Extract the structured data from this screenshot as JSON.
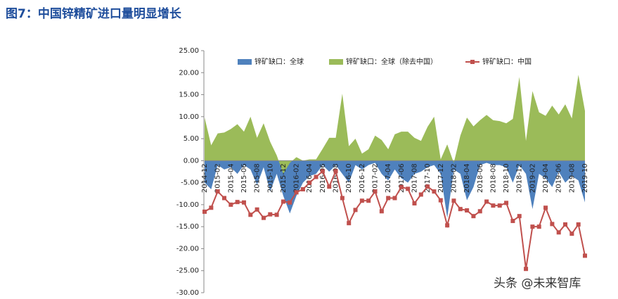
{
  "chart_data": {
    "type": "area",
    "title": "图7：中国锌精矿进口量明显增长",
    "watermark": "头条 @未来智库",
    "categories": [
      "2014-12",
      null,
      "2015-02",
      null,
      "2015-04",
      null,
      "2015-06",
      null,
      "2015-08",
      null,
      "2015-10",
      null,
      "2015-12",
      null,
      "2016-02",
      null,
      "2016-04",
      null,
      "2016-06",
      null,
      "2016-08",
      null,
      "2016-10",
      null,
      "2016-12",
      null,
      "2017-02",
      null,
      "2017-04",
      null,
      "2017-06",
      null,
      "2017-08",
      null,
      "2017-10",
      null,
      "2017-12",
      null,
      "2018-02",
      null,
      "2018-04",
      null,
      "2018-06",
      null,
      "2018-08",
      null,
      "2018-10",
      null,
      "2018-12",
      null,
      "2019-02",
      null,
      "2019-04",
      null,
      "2019-06",
      null,
      "2019-08",
      null,
      "2019-10"
    ],
    "series": [
      {
        "name": "锌矿缺口：全球",
        "color": "#4f81bd",
        "kind": "area",
        "values": [
          -5,
          -6.5,
          -1,
          -2,
          -1.5,
          -3,
          -1,
          -2,
          -5.5,
          -1.5,
          -7,
          -3,
          -8,
          -12,
          -8,
          -5,
          -3.5,
          -3,
          -1,
          -2.5,
          -1,
          -3,
          -5,
          -1,
          -2,
          -1,
          -0.5,
          -3,
          -4.5,
          -2,
          -4,
          -5,
          -3,
          -2.5,
          -1.5,
          -1,
          -3,
          -13,
          -2,
          -3,
          -9,
          -6,
          -1,
          -0.5,
          -1,
          -1,
          -1.5,
          -5,
          -1,
          -3,
          -11,
          -3,
          -4,
          -6,
          -2.5,
          -5,
          -3.5,
          -4.5,
          -9.5
        ]
      },
      {
        "name": "锌矿缺口：全球（除去中国）",
        "color": "#9bbb59",
        "kind": "area",
        "values": [
          9.8,
          3.5,
          6.2,
          6.4,
          7.2,
          8.3,
          6.6,
          10,
          5.2,
          8.5,
          4.3,
          1.2,
          -3,
          -0.5,
          0.8,
          0,
          0.3,
          0.3,
          2.7,
          5.2,
          5.2,
          15.2,
          3.3,
          5,
          1.6,
          2.6,
          5.7,
          4.7,
          2.6,
          6,
          6.6,
          6.6,
          5.2,
          4.5,
          7.7,
          10,
          0.3,
          3.7,
          -0.5,
          5.7,
          9.8,
          7.8,
          9.2,
          10.4,
          9.2,
          9,
          8.5,
          9.5,
          19,
          4.5,
          15.8,
          11,
          10.2,
          12.5,
          10.5,
          12.8,
          9.6,
          19.5,
          11.3
        ]
      },
      {
        "name": "锌矿缺口：中国",
        "color": "#c0504d",
        "kind": "line",
        "values": [
          -11.6,
          -10.7,
          -7,
          -8.5,
          -10,
          -9.4,
          -9.5,
          -12.3,
          -11.1,
          -13,
          -12.2,
          -12.3,
          -9.3,
          -9.5,
          -7.2,
          -6.5,
          -5,
          -3.7,
          -2.4,
          -5.9,
          -2.4,
          -8.5,
          -14.2,
          -11.2,
          -9.1,
          -9.1,
          -7,
          -11.5,
          -8.5,
          -8.5,
          -6,
          -6.4,
          -9.7,
          -7.7,
          -5.9,
          -7,
          -9,
          -14.7,
          -9.1,
          -11,
          -11.3,
          -12.6,
          -11.5,
          -9.3,
          -10.2,
          -10.2,
          -9.6,
          -13.7,
          -12.6,
          -24.6,
          -15,
          -15,
          -10.7,
          -14.4,
          -16.3,
          -14.5,
          -16.6,
          -14.5,
          -21.6
        ]
      }
    ],
    "ylim": [
      -30,
      25
    ],
    "yticks": [
      {
        "value": -30,
        "label": "-30.00"
      },
      {
        "value": -25,
        "label": "-25.00"
      },
      {
        "value": -20,
        "label": "-20.00"
      },
      {
        "value": -15,
        "label": "-15.00"
      },
      {
        "value": -10,
        "label": "-10.00"
      },
      {
        "value": -5,
        "label": "-5.00"
      },
      {
        "value": 0,
        "label": "0.00"
      },
      {
        "value": 5,
        "label": "5.00"
      },
      {
        "value": 10,
        "label": "10.00"
      },
      {
        "value": 15,
        "label": "15.00"
      },
      {
        "value": 20,
        "label": "20.00"
      },
      {
        "value": 25,
        "label": "25.00"
      }
    ],
    "legend": "top"
  }
}
